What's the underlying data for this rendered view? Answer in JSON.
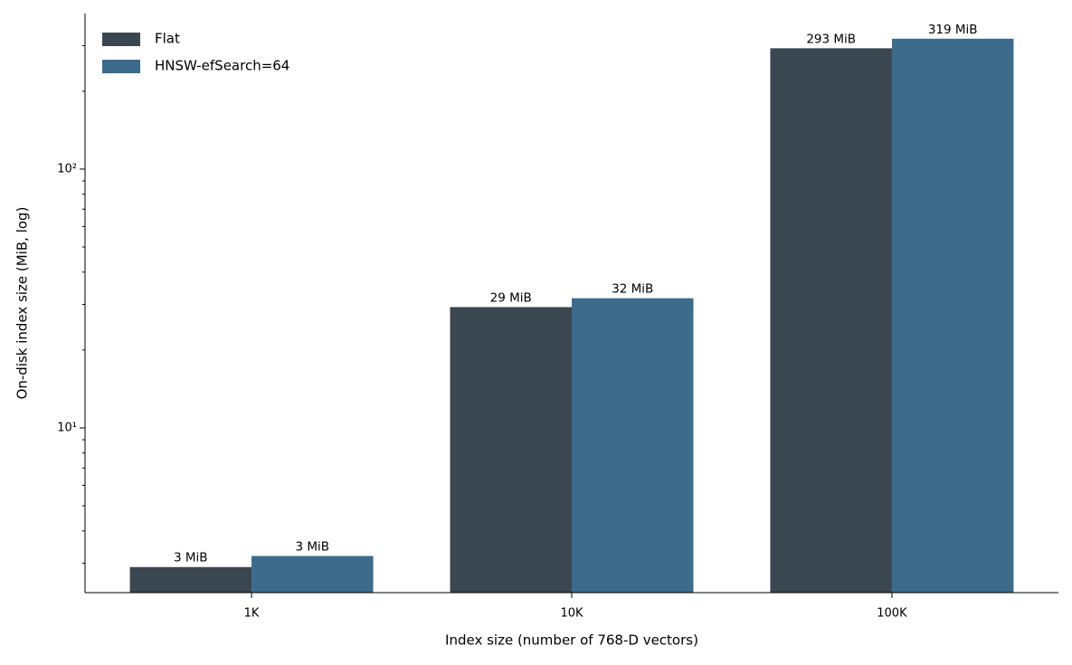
{
  "chart_data": {
    "type": "bar",
    "xlabel": "Index size (number of 768-D vectors)",
    "ylabel": "On-disk index size (MiB, log)",
    "categories": [
      "1K",
      "10K",
      "100K"
    ],
    "series": [
      {
        "name": "Flat",
        "color": "#3b4750",
        "values": [
          2.9,
          29.3,
          293
        ],
        "value_labels": [
          "3 MiB",
          "29 MiB",
          "293 MiB"
        ]
      },
      {
        "name": "HNSW-efSearch=64",
        "color": "#3c6b8c",
        "values": [
          3.2,
          31.7,
          319
        ],
        "value_labels": [
          "3 MiB",
          "32 MiB",
          "319 MiB"
        ]
      }
    ],
    "ylog": true,
    "ylim": [
      2.31,
      399
    ],
    "yticks": [
      {
        "value": 10,
        "label": "10¹"
      },
      {
        "value": 100,
        "label": "10²"
      }
    ],
    "yminorticks": [
      3,
      4,
      5,
      6,
      7,
      8,
      9,
      20,
      30,
      40,
      50,
      60,
      70,
      80,
      90,
      200,
      300
    ],
    "legend": "upper left"
  }
}
